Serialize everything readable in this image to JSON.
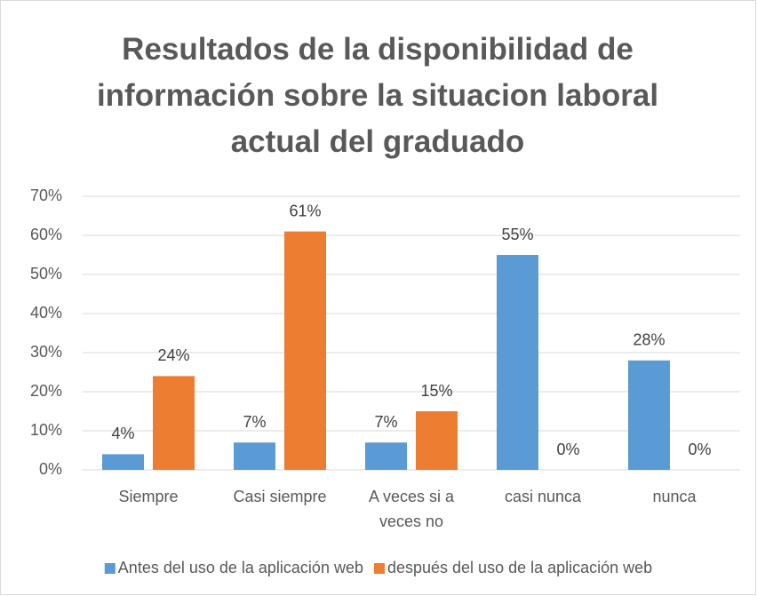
{
  "chart_data": {
    "type": "bar",
    "title": "Resultados de la disponibilidad de información sobre la situacion laboral actual del graduado",
    "categories": [
      "Siempre",
      "Casi siempre",
      "A veces si a veces no",
      "casi nunca",
      "nunca"
    ],
    "series": [
      {
        "name": "Antes del uso de la aplicación web",
        "color": "#5b9bd5",
        "values": [
          4,
          7,
          7,
          55,
          28
        ],
        "value_labels": [
          "4%",
          "7%",
          "7%",
          "55%",
          "28%"
        ]
      },
      {
        "name": "después del uso de la aplicación web",
        "color": "#ed7d31",
        "values": [
          24,
          61,
          15,
          0,
          0
        ],
        "value_labels": [
          "24%",
          "61%",
          "15%",
          "0%",
          "0%"
        ]
      }
    ],
    "ylim": [
      0,
      70
    ],
    "yticks": [
      {
        "value": 0,
        "label": "0%"
      },
      {
        "value": 10,
        "label": "10%"
      },
      {
        "value": 20,
        "label": "20%"
      },
      {
        "value": 30,
        "label": "30%"
      },
      {
        "value": 40,
        "label": "40%"
      },
      {
        "value": 50,
        "label": "50%"
      },
      {
        "value": 60,
        "label": "60%"
      },
      {
        "value": 70,
        "label": "70%"
      }
    ],
    "grid": true,
    "legend": "bottom"
  }
}
